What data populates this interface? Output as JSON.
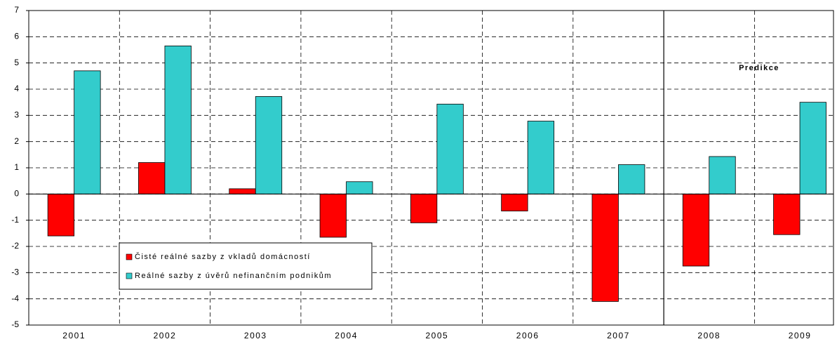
{
  "chart_data": {
    "type": "bar",
    "categories": [
      "2001",
      "2002",
      "2003",
      "2004",
      "2005",
      "2006",
      "2007",
      "2008",
      "2009"
    ],
    "series": [
      {
        "name": "Čisté reálné sazby z vkladů domácností",
        "color": "#ff0000",
        "values": [
          -1.6,
          1.2,
          0.2,
          -1.65,
          -1.1,
          -0.65,
          -4.1,
          -2.75,
          -1.55
        ]
      },
      {
        "name": "Reálné sazby z úvěrů nefinančním podnikům",
        "color": "#33cccc",
        "values": [
          4.7,
          5.65,
          3.72,
          0.47,
          3.43,
          2.78,
          1.12,
          1.43,
          3.5
        ]
      }
    ],
    "ylim": [
      -5,
      7
    ],
    "yticks": [
      -5,
      -4,
      -3,
      -2,
      -1,
      0,
      1,
      2,
      3,
      4,
      5,
      6,
      7
    ],
    "grid": true,
    "legend_position": "lower-left",
    "annotation": "Predikce",
    "prediction_start_index": 7
  }
}
